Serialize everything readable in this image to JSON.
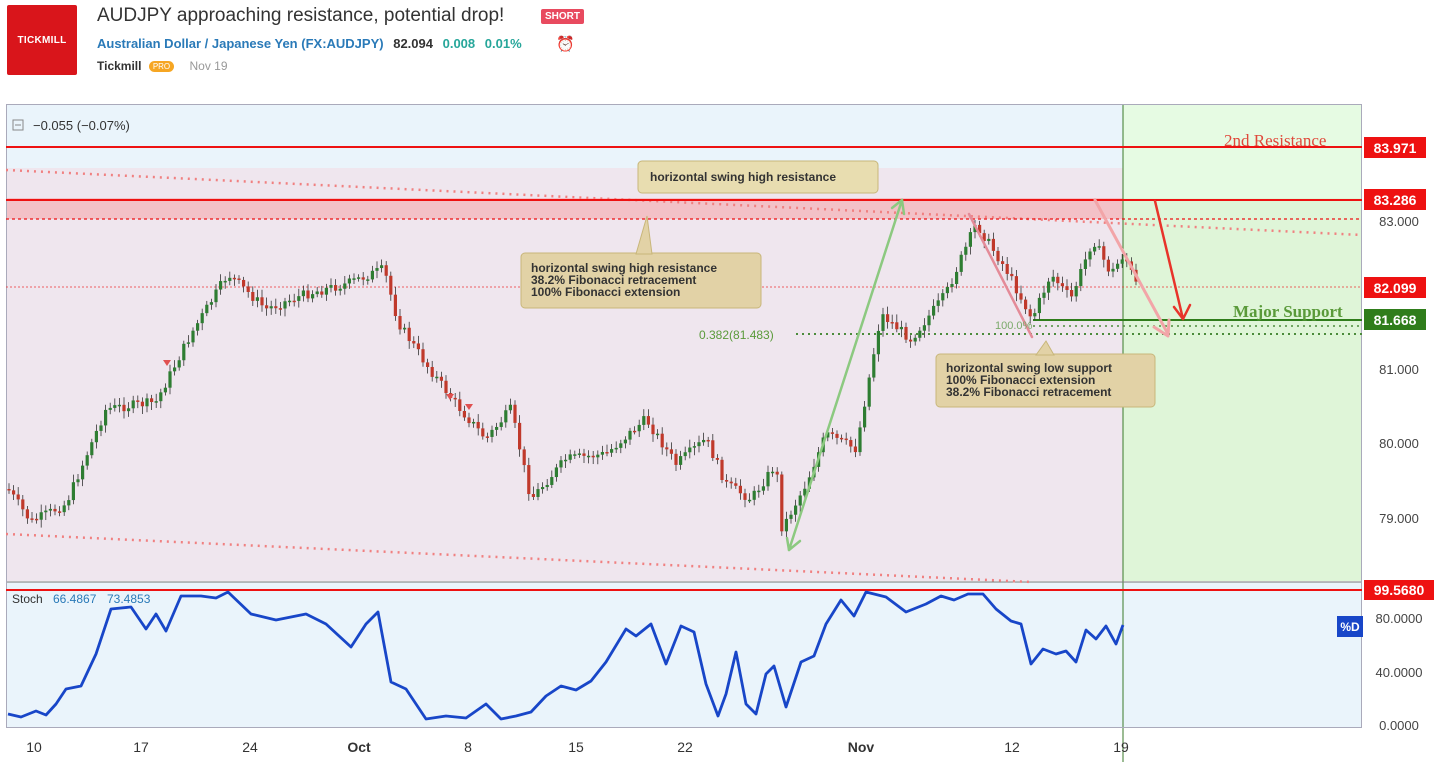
{
  "header": {
    "logo_text": "TICKMILL",
    "title": "AUDJPY approaching resistance, potential drop!",
    "badge": "SHORT",
    "symbol_name": "Australian Dollar / Japanese Yen",
    "symbol_code": "(FX:AUDJPY)",
    "price": "82.094",
    "change": "0.008",
    "change_pct": "0.01%",
    "author": "Tickmill",
    "author_badge": "PRO",
    "date": "Nov 19"
  },
  "chart": {
    "legend_change": "−0.055 (−0.07%)",
    "price_labels": {
      "second_resistance": "83.971",
      "resistance": "83.286",
      "last": "82.099",
      "support": "81.668",
      "stoch_level": "99.5680"
    },
    "axis_ticks": [
      "83.000",
      "81.000",
      "80.000",
      "79.000"
    ],
    "stoch_ticks": [
      "80.0000",
      "40.0000",
      "0.0000"
    ],
    "x_ticks": [
      "10",
      "17",
      "24",
      "Oct",
      "8",
      "15",
      "22",
      "Nov",
      "12",
      "19"
    ],
    "labels": {
      "second_resistance": "2nd Resistance",
      "major_support": "Major Support",
      "fib_382": "0.382(81.483)",
      "fib_100": "100.0%",
      "stoch": "Stoch",
      "stoch_v1": "66.4867",
      "stoch_v2": "73.4853",
      "pd": "%D"
    },
    "boxes": {
      "box1": "horizontal swing high resistance",
      "box2": [
        "horizontal swing high resistance",
        "38.2% Fibonacci retracement",
        "100% Fibonacci extension"
      ],
      "box3": [
        "horizontal swing low support",
        "100% Fibonacci extension",
        "38.2% Fibonacci retracement"
      ]
    },
    "colors": {
      "resistance": "#ee1111",
      "support": "#2f7d1b",
      "up_candle": "#2e7d32",
      "down_candle": "#c0392b",
      "stoch_line": "#1846c8"
    }
  }
}
